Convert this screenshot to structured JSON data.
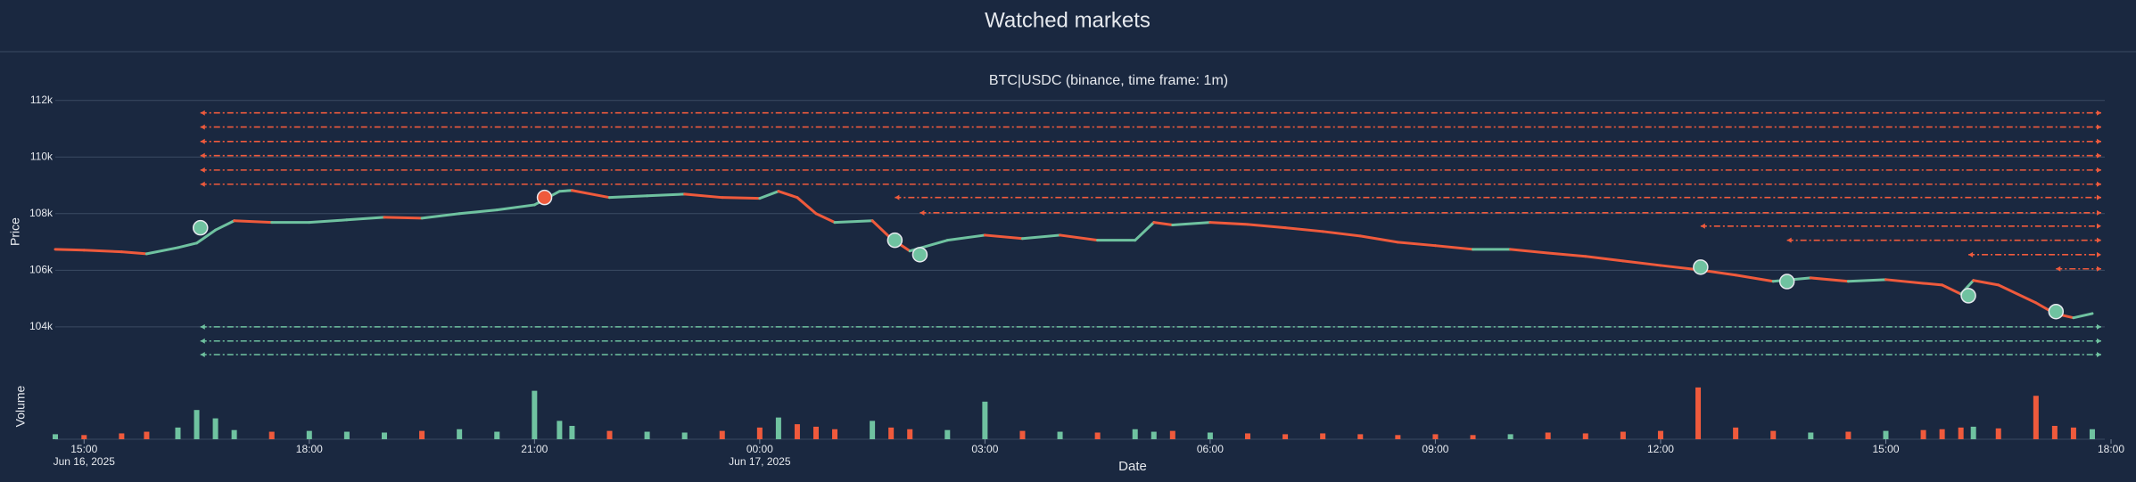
{
  "title": "Watched markets",
  "chart_data": [
    {
      "type": "line",
      "title": "BTC|USDC (binance, time frame: 1m)",
      "ylabel": "Price",
      "up_color": "#6fc2a0",
      "down_color": "#ef5a3c",
      "x": [
        "2025-06-16 14:37",
        "2025-06-16 15:00",
        "2025-06-16 15:30",
        "2025-06-16 15:50",
        "2025-06-16 16:15",
        "2025-06-16 16:30",
        "2025-06-16 16:45",
        "2025-06-16 17:00",
        "2025-06-16 17:30",
        "2025-06-16 18:00",
        "2025-06-16 18:30",
        "2025-06-16 19:00",
        "2025-06-16 19:30",
        "2025-06-16 20:00",
        "2025-06-16 20:30",
        "2025-06-16 21:00",
        "2025-06-16 21:20",
        "2025-06-16 21:30",
        "2025-06-16 22:00",
        "2025-06-16 22:30",
        "2025-06-16 23:00",
        "2025-06-16 23:30",
        "2025-06-17 00:00",
        "2025-06-17 00:15",
        "2025-06-17 00:30",
        "2025-06-17 00:45",
        "2025-06-17 01:00",
        "2025-06-17 01:30",
        "2025-06-17 01:45",
        "2025-06-17 02:00",
        "2025-06-17 02:30",
        "2025-06-17 03:00",
        "2025-06-17 03:30",
        "2025-06-17 04:00",
        "2025-06-17 04:30",
        "2025-06-17 05:00",
        "2025-06-17 05:15",
        "2025-06-17 05:30",
        "2025-06-17 06:00",
        "2025-06-17 06:30",
        "2025-06-17 07:00",
        "2025-06-17 07:30",
        "2025-06-17 08:00",
        "2025-06-17 08:30",
        "2025-06-17 09:00",
        "2025-06-17 09:30",
        "2025-06-17 10:00",
        "2025-06-17 10:30",
        "2025-06-17 11:00",
        "2025-06-17 11:30",
        "2025-06-17 12:00",
        "2025-06-17 12:30",
        "2025-06-17 13:00",
        "2025-06-17 13:30",
        "2025-06-17 14:00",
        "2025-06-17 14:30",
        "2025-06-17 15:00",
        "2025-06-17 15:30",
        "2025-06-17 15:45",
        "2025-06-17 16:00",
        "2025-06-17 16:10",
        "2025-06-17 16:30",
        "2025-06-17 17:00",
        "2025-06-17 17:15",
        "2025-06-17 17:30",
        "2025-06-17 17:45"
      ],
      "values": [
        106740,
        106710,
        106650,
        106580,
        106800,
        106960,
        107420,
        107750,
        107690,
        107690,
        107780,
        107870,
        107840,
        108000,
        108130,
        108310,
        108790,
        108820,
        108570,
        108630,
        108690,
        108570,
        108540,
        108790,
        108570,
        108000,
        107690,
        107750,
        107120,
        106680,
        107060,
        107240,
        107120,
        107240,
        107060,
        107060,
        107690,
        107600,
        107690,
        107620,
        107500,
        107370,
        107210,
        106990,
        106870,
        106740,
        106740,
        106610,
        106490,
        106330,
        106170,
        106020,
        105830,
        105610,
        105730,
        105610,
        105670,
        105540,
        105480,
        105160,
        105640,
        105480,
        104850,
        104470,
        104320,
        104470
      ],
      "points": [
        {
          "x": "2025-06-16 16:33",
          "y": 107500,
          "color": "#6fc2a0"
        },
        {
          "x": "2025-06-16 21:08",
          "y": 108570,
          "color": "#ef5a3c"
        },
        {
          "x": "2025-06-17 01:48",
          "y": 107060,
          "color": "#6fc2a0"
        },
        {
          "x": "2025-06-17 02:08",
          "y": 106550,
          "color": "#6fc2a0"
        },
        {
          "x": "2025-06-17 12:32",
          "y": 106110,
          "color": "#6fc2a0"
        },
        {
          "x": "2025-06-17 13:41",
          "y": 105600,
          "color": "#6fc2a0"
        },
        {
          "x": "2025-06-17 16:06",
          "y": 105100,
          "color": "#6fc2a0"
        },
        {
          "x": "2025-06-17 17:16",
          "y": 104540,
          "color": "#6fc2a0"
        }
      ],
      "levels": [
        {
          "value": 111560,
          "from": "2025-06-16 16:33",
          "color": "#ef5a3c"
        },
        {
          "value": 111060,
          "from": "2025-06-16 16:33",
          "color": "#ef5a3c"
        },
        {
          "value": 110550,
          "from": "2025-06-16 16:33",
          "color": "#ef5a3c"
        },
        {
          "value": 110050,
          "from": "2025-06-16 16:33",
          "color": "#ef5a3c"
        },
        {
          "value": 109540,
          "from": "2025-06-16 16:33",
          "color": "#ef5a3c"
        },
        {
          "value": 109040,
          "from": "2025-06-16 16:33",
          "color": "#ef5a3c"
        },
        {
          "value": 108570,
          "from": "2025-06-17 01:48",
          "color": "#ef5a3c"
        },
        {
          "value": 108030,
          "from": "2025-06-17 02:08",
          "color": "#ef5a3c"
        },
        {
          "value": 107560,
          "from": "2025-06-17 12:32",
          "color": "#ef5a3c"
        },
        {
          "value": 107060,
          "from": "2025-06-17 13:41",
          "color": "#ef5a3c"
        },
        {
          "value": 106550,
          "from": "2025-06-17 16:06",
          "color": "#ef5a3c"
        },
        {
          "value": 106050,
          "from": "2025-06-17 17:16",
          "color": "#ef5a3c"
        },
        {
          "value": 104000,
          "from": "2025-06-16 16:33",
          "color": "#6fc2a0"
        },
        {
          "value": 103500,
          "from": "2025-06-16 16:33",
          "color": "#6fc2a0"
        },
        {
          "value": 103020,
          "from": "2025-06-16 16:33",
          "color": "#6fc2a0"
        }
      ],
      "xlim": [
        "2025-06-16 14:37",
        "2025-06-17 17:55"
      ],
      "ylim": [
        102800,
        112400
      ],
      "yticks": [
        {
          "value": 104000,
          "label": "104k"
        },
        {
          "value": 106000,
          "label": "106k"
        },
        {
          "value": 108000,
          "label": "108k"
        },
        {
          "value": 110000,
          "label": "110k"
        },
        {
          "value": 112000,
          "label": "112k"
        }
      ],
      "grid": true
    },
    {
      "type": "bar",
      "ylabel": "Volume",
      "xlabel": "Date",
      "x": [
        "2025-06-16 14:37",
        "2025-06-16 15:00",
        "2025-06-16 15:30",
        "2025-06-16 15:50",
        "2025-06-16 16:15",
        "2025-06-16 16:30",
        "2025-06-16 16:45",
        "2025-06-16 17:00",
        "2025-06-16 17:30",
        "2025-06-16 18:00",
        "2025-06-16 18:30",
        "2025-06-16 19:00",
        "2025-06-16 19:30",
        "2025-06-16 20:00",
        "2025-06-16 20:30",
        "2025-06-16 21:00",
        "2025-06-16 21:20",
        "2025-06-16 21:30",
        "2025-06-16 22:00",
        "2025-06-16 22:30",
        "2025-06-16 23:00",
        "2025-06-16 23:30",
        "2025-06-17 00:00",
        "2025-06-17 00:15",
        "2025-06-17 00:30",
        "2025-06-17 00:45",
        "2025-06-17 01:00",
        "2025-06-17 01:30",
        "2025-06-17 01:45",
        "2025-06-17 02:00",
        "2025-06-17 02:30",
        "2025-06-17 03:00",
        "2025-06-17 03:30",
        "2025-06-17 04:00",
        "2025-06-17 04:30",
        "2025-06-17 05:00",
        "2025-06-17 05:15",
        "2025-06-17 05:30",
        "2025-06-17 06:00",
        "2025-06-17 06:30",
        "2025-06-17 07:00",
        "2025-06-17 07:30",
        "2025-06-17 08:00",
        "2025-06-17 08:30",
        "2025-06-17 09:00",
        "2025-06-17 09:30",
        "2025-06-17 10:00",
        "2025-06-17 10:30",
        "2025-06-17 11:00",
        "2025-06-17 11:30",
        "2025-06-17 12:00",
        "2025-06-17 12:30",
        "2025-06-17 13:00",
        "2025-06-17 13:30",
        "2025-06-17 14:00",
        "2025-06-17 14:30",
        "2025-06-17 15:00",
        "2025-06-17 15:30",
        "2025-06-17 15:45",
        "2025-06-17 16:00",
        "2025-06-17 16:10",
        "2025-06-17 16:30",
        "2025-06-17 17:00",
        "2025-06-17 17:15",
        "2025-06-17 17:30",
        "2025-06-17 17:45"
      ],
      "values": [
        6,
        5,
        7,
        9,
        14,
        35,
        25,
        11,
        9,
        10,
        9,
        8,
        10,
        12,
        9,
        58,
        22,
        16,
        10,
        9,
        8,
        10,
        14,
        26,
        18,
        15,
        12,
        22,
        14,
        12,
        11,
        45,
        10,
        9,
        8,
        12,
        9,
        10,
        8,
        7,
        6,
        7,
        6,
        5,
        6,
        5,
        6,
        8,
        7,
        9,
        10,
        62,
        14,
        10,
        8,
        9,
        10,
        11,
        12,
        14,
        15,
        13,
        52,
        16,
        14,
        12
      ],
      "xlim": [
        "2025-06-16 14:37",
        "2025-06-17 17:55"
      ],
      "ylim": [
        0,
        80
      ],
      "xticks": [
        {
          "value": "2025-06-16 15:00",
          "label": "15:00",
          "date": "Jun 16, 2025"
        },
        {
          "value": "2025-06-16 18:00",
          "label": "18:00"
        },
        {
          "value": "2025-06-16 21:00",
          "label": "21:00"
        },
        {
          "value": "2025-06-17 00:00",
          "label": "00:00",
          "date": "Jun 17, 2025"
        },
        {
          "value": "2025-06-17 03:00",
          "label": "03:00"
        },
        {
          "value": "2025-06-17 06:00",
          "label": "06:00"
        },
        {
          "value": "2025-06-17 09:00",
          "label": "09:00"
        },
        {
          "value": "2025-06-17 12:00",
          "label": "12:00"
        },
        {
          "value": "2025-06-17 15:00",
          "label": "15:00"
        },
        {
          "value": "2025-06-17 18:00",
          "label": "18:00"
        }
      ]
    }
  ]
}
